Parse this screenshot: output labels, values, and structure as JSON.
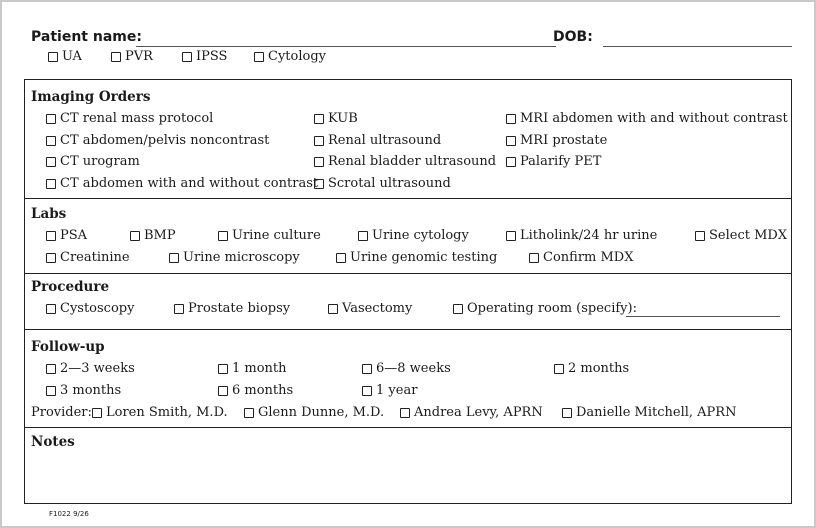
{
  "header": {
    "patient_name_label": "Patient name:",
    "dob_label": "DOB:",
    "tests": [
      "UA",
      "PVR",
      "IPSS",
      "Cytology"
    ]
  },
  "imaging": {
    "title": "Imaging Orders",
    "items": [
      "CT renal mass protocol",
      "CT abdomen/pelvis noncontrast",
      "CT urogram",
      "CT abdomen with and without contrast",
      "KUB",
      "Renal ultrasound",
      "Renal bladder ultrasound",
      "Scrotal ultrasound",
      "MRI abdomen with and without contrast",
      "MRI prostate",
      "Palarify PET"
    ]
  },
  "labs": {
    "title": "Labs",
    "items": [
      "PSA",
      "BMP",
      "Urine culture",
      "Urine cytology",
      "Litholink/24 hr urine",
      "Select MDX",
      "Creatinine",
      "Urine microscopy",
      "Urine genomic testing",
      "Confirm MDX"
    ]
  },
  "procedure": {
    "title": "Procedure",
    "items": [
      "Cystoscopy",
      "Prostate biopsy",
      "Vasectomy",
      "Operating room (specify):"
    ]
  },
  "followup": {
    "title": "Follow-up",
    "items": [
      "2—3 weeks",
      "1 month",
      "6—8 weeks",
      "2 months",
      "3 months",
      "6 months",
      "1 year"
    ],
    "provider_label": "Provider:",
    "providers": [
      "Loren Smith, M.D.",
      "Glenn Dunne, M.D.",
      "Andrea Levy, APRN",
      "Danielle Mitchell, APRN"
    ]
  },
  "notes": {
    "title": "Notes"
  },
  "footer": {
    "code": "F1022 9/26"
  }
}
